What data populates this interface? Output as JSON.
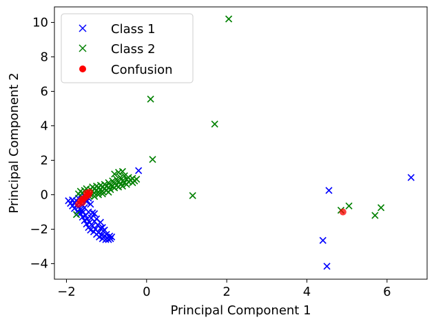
{
  "chart_data": {
    "type": "scatter",
    "xlabel": "Principal Component 1",
    "ylabel": "Principal Component 2",
    "xlim": [
      -2.3,
      7.0
    ],
    "ylim": [
      -4.9,
      10.9
    ],
    "xticks": [
      -2,
      0,
      2,
      4,
      6
    ],
    "yticks": [
      -4,
      -2,
      0,
      2,
      4,
      6,
      8,
      10
    ],
    "xtick_labels": [
      "−2",
      "0",
      "2",
      "4",
      "6"
    ],
    "ytick_labels": [
      "−4",
      "−2",
      "0",
      "2",
      "4",
      "6",
      "8",
      "10"
    ],
    "grid": false,
    "legend_position": "top-left",
    "series": [
      {
        "name": "Class 1",
        "marker": "x",
        "color": "#0000ff",
        "points": [
          [
            -1.95,
            -0.35
          ],
          [
            -1.9,
            -0.5
          ],
          [
            -1.85,
            -0.3
          ],
          [
            -1.85,
            -0.65
          ],
          [
            -1.8,
            -0.45
          ],
          [
            -1.8,
            -0.8
          ],
          [
            -1.75,
            -0.6
          ],
          [
            -1.75,
            -0.35
          ],
          [
            -1.72,
            -0.95
          ],
          [
            -1.7,
            -0.7
          ],
          [
            -1.68,
            -0.45
          ],
          [
            -1.65,
            -1.1
          ],
          [
            -1.65,
            -0.85
          ],
          [
            -1.62,
            -0.25
          ],
          [
            -1.6,
            -0.6
          ],
          [
            -1.6,
            -1.3
          ],
          [
            -1.58,
            -1.0
          ],
          [
            -1.55,
            -1.5
          ],
          [
            -1.55,
            -0.75
          ],
          [
            -1.52,
            -1.2
          ],
          [
            -1.5,
            -1.7
          ],
          [
            -1.5,
            -0.4
          ],
          [
            -1.48,
            -1.4
          ],
          [
            -1.45,
            -1.9
          ],
          [
            -1.45,
            -1.0
          ],
          [
            -1.42,
            -1.6
          ],
          [
            -1.4,
            -2.05
          ],
          [
            -1.38,
            -1.35
          ],
          [
            -1.35,
            -1.8
          ],
          [
            -1.32,
            -2.15
          ],
          [
            -1.3,
            -1.55
          ],
          [
            -1.28,
            -2.0
          ],
          [
            -1.25,
            -2.3
          ],
          [
            -1.22,
            -1.75
          ],
          [
            -1.2,
            -2.2
          ],
          [
            -1.18,
            -2.45
          ],
          [
            -1.15,
            -1.95
          ],
          [
            -1.12,
            -2.35
          ],
          [
            -1.1,
            -2.55
          ],
          [
            -1.08,
            -2.1
          ],
          [
            -1.05,
            -2.4
          ],
          [
            -1.02,
            -2.6
          ],
          [
            -1.0,
            -2.3
          ],
          [
            -0.98,
            -2.5
          ],
          [
            -0.95,
            -2.6
          ],
          [
            -0.92,
            -2.4
          ],
          [
            -0.9,
            -2.55
          ],
          [
            -0.87,
            -2.45
          ],
          [
            -1.7,
            -0.2
          ],
          [
            -1.6,
            -0.15
          ],
          [
            -1.55,
            -0.1
          ],
          [
            -1.5,
            -0.3
          ],
          [
            -1.45,
            -0.2
          ],
          [
            -1.4,
            -0.55
          ],
          [
            -1.62,
            -0.95
          ],
          [
            -1.7,
            -1.05
          ],
          [
            -1.3,
            -1.1
          ],
          [
            -1.25,
            -1.4
          ],
          [
            -1.35,
            -1.05
          ],
          [
            -1.15,
            -1.6
          ],
          [
            -1.1,
            -1.9
          ],
          [
            -1.05,
            -2.05
          ],
          [
            -0.2,
            1.4
          ],
          [
            4.4,
            -2.65
          ],
          [
            4.5,
            -4.15
          ],
          [
            4.55,
            0.25
          ],
          [
            6.6,
            1.0
          ]
        ]
      },
      {
        "name": "Class 2",
        "marker": "x",
        "color": "#008000",
        "points": [
          [
            -1.75,
            -1.15
          ],
          [
            -1.7,
            0.05
          ],
          [
            -1.65,
            0.2
          ],
          [
            -1.6,
            0.1
          ],
          [
            -1.55,
            0.25
          ],
          [
            -1.5,
            0.35
          ],
          [
            -1.5,
            0.05
          ],
          [
            -1.45,
            0.15
          ],
          [
            -1.4,
            0.3
          ],
          [
            -1.4,
            0.0
          ],
          [
            -1.35,
            0.45
          ],
          [
            -1.35,
            0.2
          ],
          [
            -1.3,
            0.1
          ],
          [
            -1.3,
            0.35
          ],
          [
            -1.25,
            0.5
          ],
          [
            -1.25,
            0.25
          ],
          [
            -1.2,
            0.15
          ],
          [
            -1.2,
            0.4
          ],
          [
            -1.15,
            0.55
          ],
          [
            -1.15,
            0.3
          ],
          [
            -1.1,
            0.2
          ],
          [
            -1.1,
            0.45
          ],
          [
            -1.05,
            0.6
          ],
          [
            -1.05,
            0.35
          ],
          [
            -1.0,
            0.25
          ],
          [
            -1.0,
            0.5
          ],
          [
            -0.95,
            0.7
          ],
          [
            -0.95,
            0.4
          ],
          [
            -0.9,
            0.3
          ],
          [
            -0.9,
            0.55
          ],
          [
            -0.85,
            0.8
          ],
          [
            -0.85,
            0.5
          ],
          [
            -0.8,
            0.4
          ],
          [
            -0.8,
            0.65
          ],
          [
            -0.75,
            0.9
          ],
          [
            -0.75,
            0.55
          ],
          [
            -0.7,
            0.45
          ],
          [
            -0.7,
            0.75
          ],
          [
            -0.65,
            1.0
          ],
          [
            -0.65,
            0.6
          ],
          [
            -0.6,
            0.5
          ],
          [
            -0.6,
            0.8
          ],
          [
            -0.55,
            1.1
          ],
          [
            -0.55,
            0.7
          ],
          [
            -0.5,
            0.6
          ],
          [
            -0.5,
            0.9
          ],
          [
            -0.45,
            1.0
          ],
          [
            -0.45,
            0.75
          ],
          [
            -0.4,
            0.85
          ],
          [
            -0.35,
            0.95
          ],
          [
            -0.35,
            0.7
          ],
          [
            -0.3,
            0.8
          ],
          [
            -0.25,
            0.9
          ],
          [
            -0.7,
            1.3
          ],
          [
            -0.8,
            1.2
          ],
          [
            -1.2,
            0.0
          ],
          [
            -1.45,
            -0.05
          ],
          [
            -1.3,
            -0.1
          ],
          [
            -1.1,
            0.05
          ],
          [
            -0.95,
            0.15
          ],
          [
            -0.6,
            1.35
          ],
          [
            0.1,
            5.55
          ],
          [
            0.15,
            2.05
          ],
          [
            1.15,
            -0.05
          ],
          [
            1.7,
            4.1
          ],
          [
            2.05,
            10.2
          ],
          [
            4.85,
            -0.9
          ],
          [
            5.05,
            -0.65
          ],
          [
            5.7,
            -1.2
          ],
          [
            5.85,
            -0.75
          ]
        ]
      },
      {
        "name": "Confusion",
        "marker": "o",
        "color": "#ff0000",
        "points": [
          [
            -1.7,
            -0.55
          ],
          [
            -1.65,
            -0.35
          ],
          [
            -1.6,
            -0.45
          ],
          [
            -1.55,
            -0.2
          ],
          [
            -1.5,
            -0.1
          ],
          [
            -1.45,
            0.0
          ],
          [
            -1.42,
            0.15
          ],
          [
            -1.5,
            0.1
          ],
          [
            -1.6,
            -0.25
          ],
          [
            4.9,
            -1.0
          ]
        ]
      }
    ]
  }
}
